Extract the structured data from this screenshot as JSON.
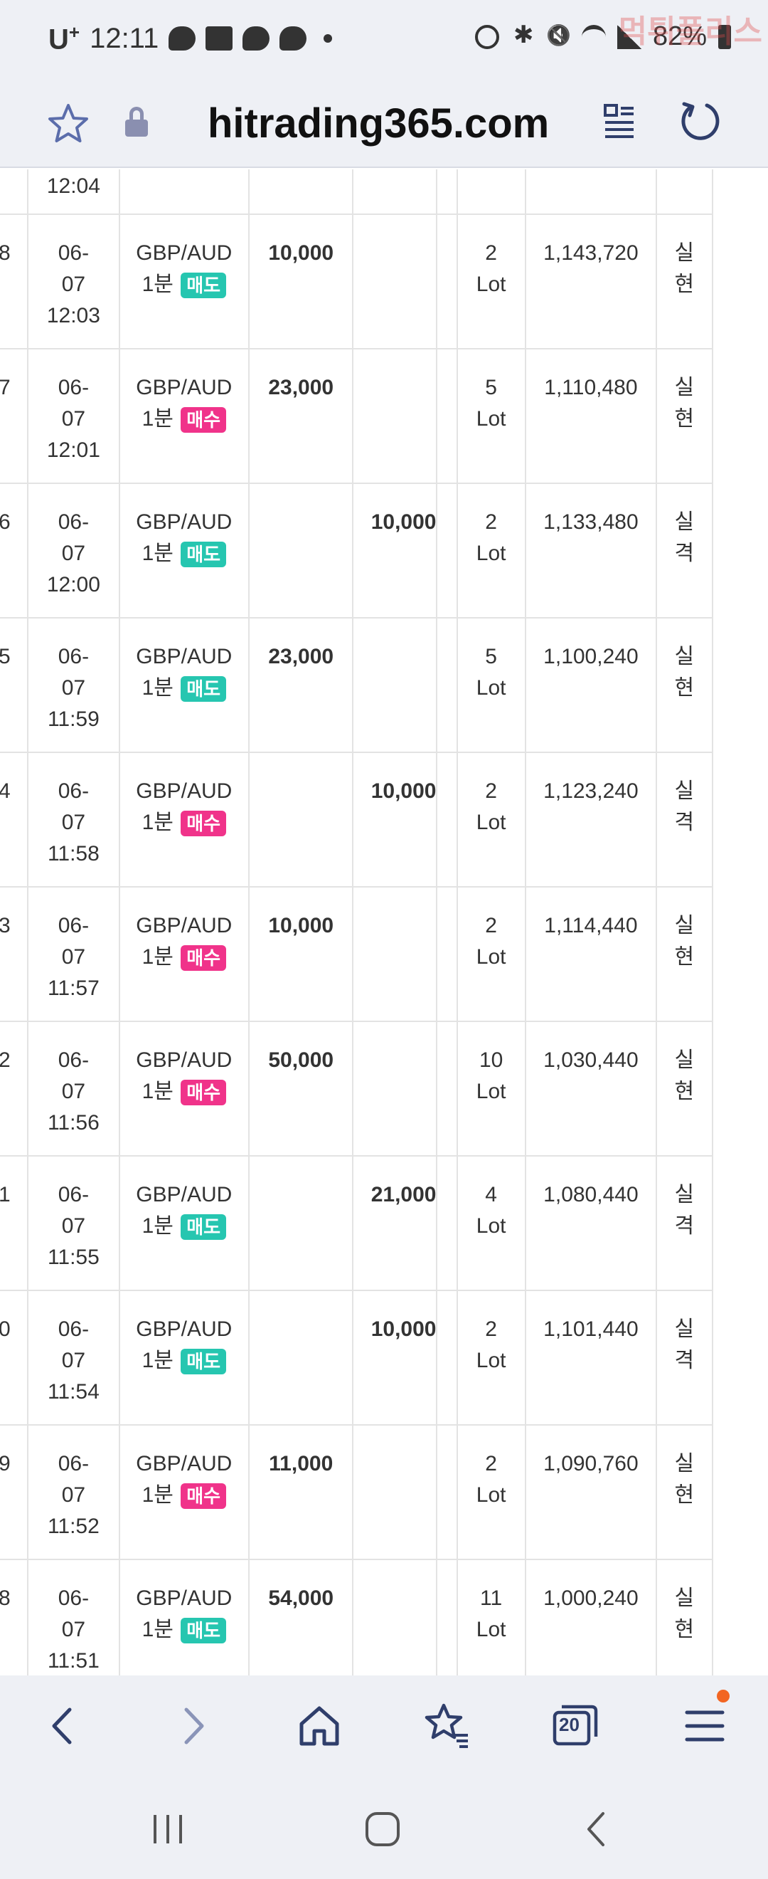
{
  "status_bar": {
    "carrier": "U",
    "carrier_sup": "+",
    "time": "12:11",
    "battery": "82%",
    "watermark": "먹튀폴리스"
  },
  "browser": {
    "url": "hitrading365.com"
  },
  "partial_top_row": {
    "time_tail": "12:04"
  },
  "trades": [
    {
      "no_tail": "8",
      "date": "06-",
      "day": "07",
      "time": "12:03",
      "symbol": "GBP/AUD",
      "period": "1분",
      "side": "매도",
      "side_type": "sell",
      "profit": "10,000",
      "loss": "",
      "qty": "2",
      "unit": "Lot",
      "balance": "1,143,720",
      "result1": "실",
      "result2": "현",
      "result_type": "win"
    },
    {
      "no_tail": "7",
      "date": "06-",
      "day": "07",
      "time": "12:01",
      "symbol": "GBP/AUD",
      "period": "1분",
      "side": "매수",
      "side_type": "buy",
      "profit": "23,000",
      "loss": "",
      "qty": "5",
      "unit": "Lot",
      "balance": "1,110,480",
      "result1": "실",
      "result2": "현",
      "result_type": "win"
    },
    {
      "no_tail": "6",
      "date": "06-",
      "day": "07",
      "time": "12:00",
      "symbol": "GBP/AUD",
      "period": "1분",
      "side": "매도",
      "side_type": "sell",
      "profit": "",
      "loss": "10,000",
      "qty": "2",
      "unit": "Lot",
      "balance": "1,133,480",
      "result1": "실",
      "result2": "격",
      "result_type": "loss"
    },
    {
      "no_tail": "5",
      "date": "06-",
      "day": "07",
      "time": "11:59",
      "symbol": "GBP/AUD",
      "period": "1분",
      "side": "매도",
      "side_type": "sell",
      "profit": "23,000",
      "loss": "",
      "qty": "5",
      "unit": "Lot",
      "balance": "1,100,240",
      "result1": "실",
      "result2": "현",
      "result_type": "win"
    },
    {
      "no_tail": "4",
      "date": "06-",
      "day": "07",
      "time": "11:58",
      "symbol": "GBP/AUD",
      "period": "1분",
      "side": "매수",
      "side_type": "buy",
      "profit": "",
      "loss": "10,000",
      "qty": "2",
      "unit": "Lot",
      "balance": "1,123,240",
      "result1": "실",
      "result2": "격",
      "result_type": "loss"
    },
    {
      "no_tail": "3",
      "date": "06-",
      "day": "07",
      "time": "11:57",
      "symbol": "GBP/AUD",
      "period": "1분",
      "side": "매수",
      "side_type": "buy",
      "profit": "10,000",
      "loss": "",
      "qty": "2",
      "unit": "Lot",
      "balance": "1,114,440",
      "result1": "실",
      "result2": "현",
      "result_type": "win"
    },
    {
      "no_tail": "2",
      "date": "06-",
      "day": "07",
      "time": "11:56",
      "symbol": "GBP/AUD",
      "period": "1분",
      "side": "매수",
      "side_type": "buy",
      "profit": "50,000",
      "loss": "",
      "qty": "10",
      "unit": "Lot",
      "balance": "1,030,440",
      "result1": "실",
      "result2": "현",
      "result_type": "win"
    },
    {
      "no_tail": "1",
      "date": "06-",
      "day": "07",
      "time": "11:55",
      "symbol": "GBP/AUD",
      "period": "1분",
      "side": "매도",
      "side_type": "sell",
      "profit": "",
      "loss": "21,000",
      "qty": "4",
      "unit": "Lot",
      "balance": "1,080,440",
      "result1": "실",
      "result2": "격",
      "result_type": "loss"
    },
    {
      "no_tail": "0",
      "date": "06-",
      "day": "07",
      "time": "11:54",
      "symbol": "GBP/AUD",
      "period": "1분",
      "side": "매도",
      "side_type": "sell",
      "profit": "",
      "loss": "10,000",
      "qty": "2",
      "unit": "Lot",
      "balance": "1,101,440",
      "result1": "실",
      "result2": "격",
      "result_type": "loss"
    },
    {
      "no_tail": "9",
      "date": "06-",
      "day": "07",
      "time": "11:52",
      "symbol": "GBP/AUD",
      "period": "1분",
      "side": "매수",
      "side_type": "buy",
      "profit": "11,000",
      "loss": "",
      "qty": "2",
      "unit": "Lot",
      "balance": "1,090,760",
      "result1": "실",
      "result2": "현",
      "result_type": "win"
    },
    {
      "no_tail": "8",
      "date": "06-",
      "day": "07",
      "time": "11:51",
      "symbol": "GBP/AUD",
      "period": "1분",
      "side": "매도",
      "side_type": "sell",
      "profit": "54,000",
      "loss": "",
      "qty": "11",
      "unit": "Lot",
      "balance": "1,000,240",
      "result1": "실",
      "result2": "현",
      "result_type": "win"
    }
  ],
  "bottom_nav": {
    "tab_count": "20",
    "icons": [
      "back-icon",
      "forward-icon",
      "home-icon",
      "bookmarks-icon",
      "tabs-icon",
      "menu-icon"
    ]
  },
  "colors": {
    "profit": "#4db8a8",
    "loss": "#c0282d",
    "sell_badge": "#26c6b0",
    "buy_badge": "#f0338a",
    "bar_bg": "#eef0f5",
    "nav_icon": "#2f3e6b"
  }
}
